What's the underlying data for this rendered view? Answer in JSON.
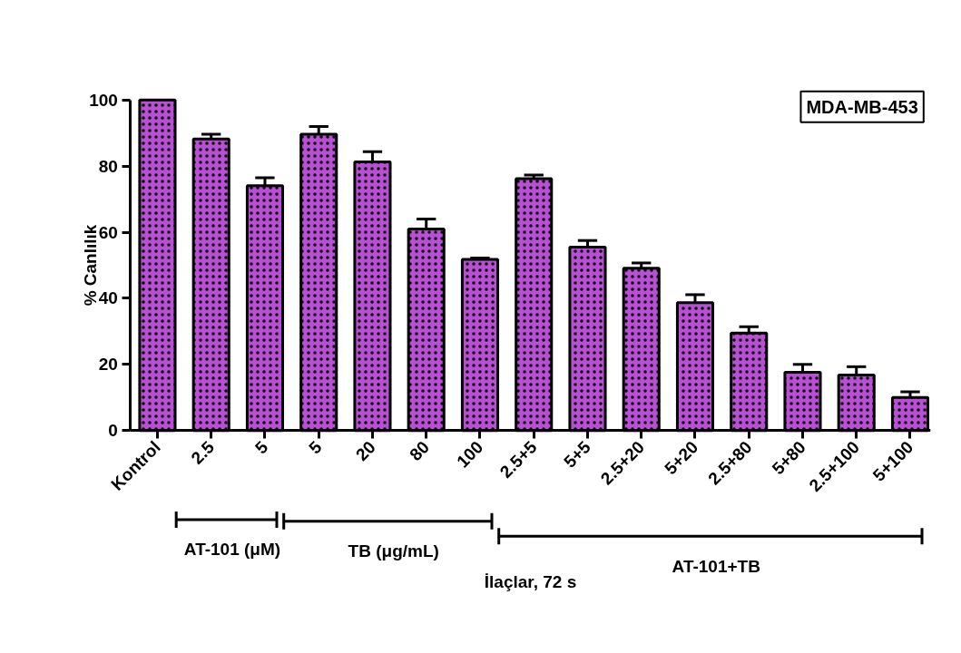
{
  "chart_data": {
    "type": "bar",
    "title": "MDA-MB-453",
    "xlabel": "İlaçlar, 72 s",
    "ylabel": "% Canlılık",
    "categories": [
      "Kontrol",
      "2.5",
      "5",
      "5",
      "20",
      "80",
      "100",
      "2.5+5",
      "5+5",
      "2.5+20",
      "5+20",
      "2.5+80",
      "5+80",
      "2.5+100",
      "5+100"
    ],
    "values": [
      100,
      88.2,
      74.1,
      89.7,
      81.3,
      61.0,
      51.8,
      76.2,
      55.5,
      49.1,
      38.7,
      29.5,
      17.6,
      16.8,
      10.0
    ],
    "errors": [
      null,
      [
        88.2,
        89.7
      ],
      [
        74.1,
        76.5
      ],
      [
        89.7,
        92.0
      ],
      [
        81.3,
        84.4
      ],
      [
        61.0,
        64.0
      ],
      [
        51.8,
        52.2
      ],
      [
        76.2,
        77.3
      ],
      [
        55.5,
        57.5
      ],
      [
        49.1,
        50.7
      ],
      [
        38.7,
        41.1
      ],
      [
        29.5,
        31.4
      ],
      [
        17.6,
        20.0
      ],
      [
        16.8,
        19.3
      ],
      [
        10.0,
        11.7
      ]
    ],
    "color": "#b94fd4",
    "ylim": [
      0,
      100
    ],
    "yticks": [
      0,
      20,
      40,
      60,
      80,
      100
    ],
    "grid": false,
    "annotations": [
      "AT-101 (μM)",
      "TB (μg/mL)",
      "AT-101+TB"
    ]
  }
}
